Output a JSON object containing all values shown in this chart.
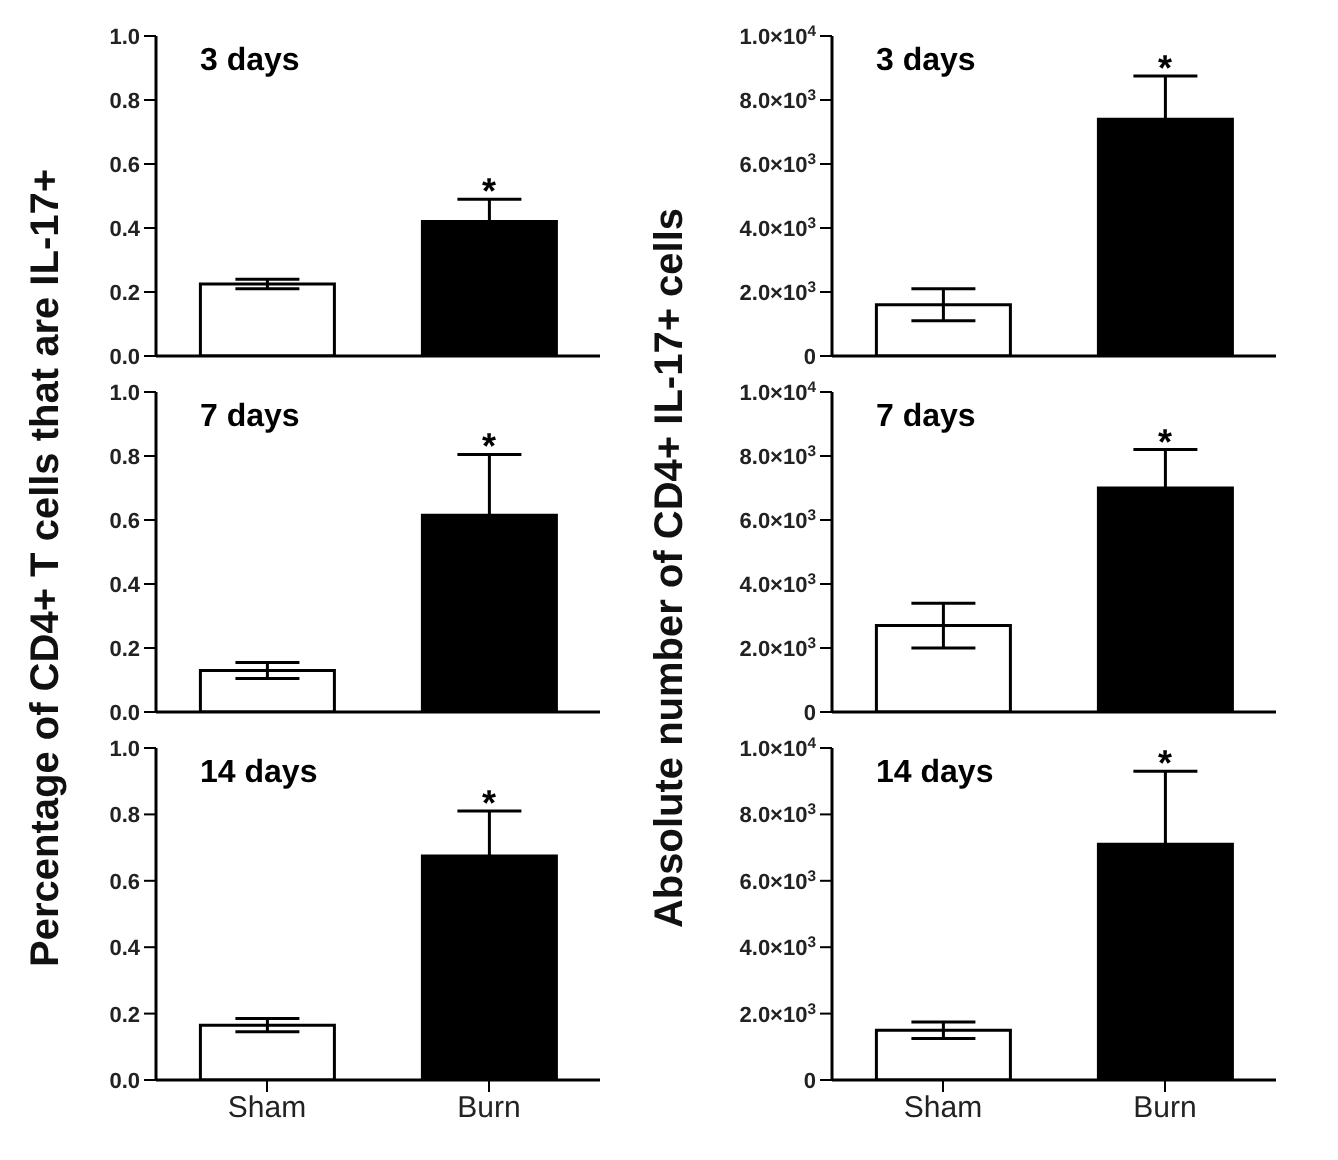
{
  "chart_data": [
    {
      "type": "bar",
      "title": "3 days",
      "ylabel": "Percentage of CD4+ T cells that are IL-17+",
      "categories": [
        "Sham",
        "Burn"
      ],
      "values": [
        0.225,
        0.42
      ],
      "errors": [
        0.015,
        0.07
      ],
      "colors": [
        "#ffffff",
        "#000000"
      ],
      "ylim": [
        0,
        1
      ],
      "yticks": [
        {
          "value": 0,
          "label": "0.0"
        },
        {
          "value": 0.2,
          "label": "0.2"
        },
        {
          "value": 0.4,
          "label": "0.4"
        },
        {
          "value": 0.6,
          "label": "0.6"
        },
        {
          "value": 0.8,
          "label": "0.8"
        },
        {
          "value": 1,
          "label": "1.0"
        }
      ],
      "annotations": [
        {
          "text": "*",
          "x": "Burn",
          "y": 0.49
        }
      ],
      "tick_labels": "y",
      "grid": false,
      "legend": false
    },
    {
      "type": "bar",
      "title": "7 days",
      "categories": [
        "Sham",
        "Burn"
      ],
      "values": [
        0.13,
        0.615
      ],
      "errors": [
        0.025,
        0.19
      ],
      "colors": [
        "#ffffff",
        "#000000"
      ],
      "ylim": [
        0,
        1
      ],
      "yticks": [
        {
          "value": 0,
          "label": "0.0"
        },
        {
          "value": 0.2,
          "label": "0.2"
        },
        {
          "value": 0.4,
          "label": "0.4"
        },
        {
          "value": 0.6,
          "label": "0.6"
        },
        {
          "value": 0.8,
          "label": "0.8"
        },
        {
          "value": 1,
          "label": "1.0"
        }
      ],
      "annotations": [
        {
          "text": "*",
          "x": "Burn",
          "y": 0.805
        }
      ],
      "tick_labels": "y",
      "grid": false,
      "legend": false
    },
    {
      "type": "bar",
      "title": "14 days",
      "categories": [
        "Sham",
        "Burn"
      ],
      "values": [
        0.165,
        0.675
      ],
      "errors": [
        0.02,
        0.135
      ],
      "colors": [
        "#ffffff",
        "#000000"
      ],
      "ylim": [
        0,
        1
      ],
      "yticks": [
        {
          "value": 0,
          "label": "0.0"
        },
        {
          "value": 0.2,
          "label": "0.2"
        },
        {
          "value": 0.4,
          "label": "0.4"
        },
        {
          "value": 0.6,
          "label": "0.6"
        },
        {
          "value": 0.8,
          "label": "0.8"
        },
        {
          "value": 1,
          "label": "1.0"
        }
      ],
      "annotations": [
        {
          "text": "*",
          "x": "Burn",
          "y": 0.81
        }
      ],
      "grid": false,
      "legend": false
    },
    {
      "type": "bar",
      "title": "3 days",
      "ylabel": "Absolute number of CD4+ IL-17+ cells",
      "categories": [
        "Sham",
        "Burn"
      ],
      "values": [
        1600,
        7400
      ],
      "errors": [
        500,
        1350
      ],
      "colors": [
        "#ffffff",
        "#000000"
      ],
      "ylim": [
        0,
        10000
      ],
      "yticks": [
        {
          "value": 0,
          "label": "0"
        },
        {
          "value": 2000,
          "label": "2.0×10$^{3}$"
        },
        {
          "value": 4000,
          "label": "4.0×10$^{3}$"
        },
        {
          "value": 6000,
          "label": "6.0×10$^{3}$"
        },
        {
          "value": 8000,
          "label": "8.0×10$^{3}$"
        },
        {
          "value": 10000,
          "label": "1.0×10$^{4}$"
        }
      ],
      "annotations": [
        {
          "text": "*",
          "x": "Burn",
          "y": 8750
        }
      ],
      "tick_labels": "y",
      "grid": false,
      "legend": false
    },
    {
      "type": "bar",
      "title": "7 days",
      "categories": [
        "Sham",
        "Burn"
      ],
      "values": [
        2700,
        7000
      ],
      "errors": [
        700,
        1200
      ],
      "colors": [
        "#ffffff",
        "#000000"
      ],
      "ylim": [
        0,
        10000
      ],
      "yticks": [
        {
          "value": 0,
          "label": "0"
        },
        {
          "value": 2000,
          "label": "2.0×10$^{3}$"
        },
        {
          "value": 4000,
          "label": "4.0×10$^{3}$"
        },
        {
          "value": 6000,
          "label": "6.0×10$^{3}$"
        },
        {
          "value": 8000,
          "label": "8.0×10$^{3}$"
        },
        {
          "value": 10000,
          "label": "1.0×10$^{4}$"
        }
      ],
      "annotations": [
        {
          "text": "*",
          "x": "Burn",
          "y": 8200
        }
      ],
      "tick_labels": "y",
      "grid": false,
      "legend": false
    },
    {
      "type": "bar",
      "title": "14 days",
      "categories": [
        "Sham",
        "Burn"
      ],
      "values": [
        1500,
        7100
      ],
      "errors": [
        250,
        2200
      ],
      "colors": [
        "#ffffff",
        "#000000"
      ],
      "ylim": [
        0,
        10000
      ],
      "yticks": [
        {
          "value": 0,
          "label": "0"
        },
        {
          "value": 2000,
          "label": "2.0×10$^{3}$"
        },
        {
          "value": 4000,
          "label": "4.0×10$^{3}$"
        },
        {
          "value": 6000,
          "label": "6.0×10$^{3}$"
        },
        {
          "value": 8000,
          "label": "8.0×10$^{3}$"
        },
        {
          "value": 10000,
          "label": "1.0×10$^{4}$"
        }
      ],
      "annotations": [
        {
          "text": "*",
          "x": "Burn",
          "y": 9300
        }
      ],
      "grid": false,
      "legend": false
    }
  ]
}
